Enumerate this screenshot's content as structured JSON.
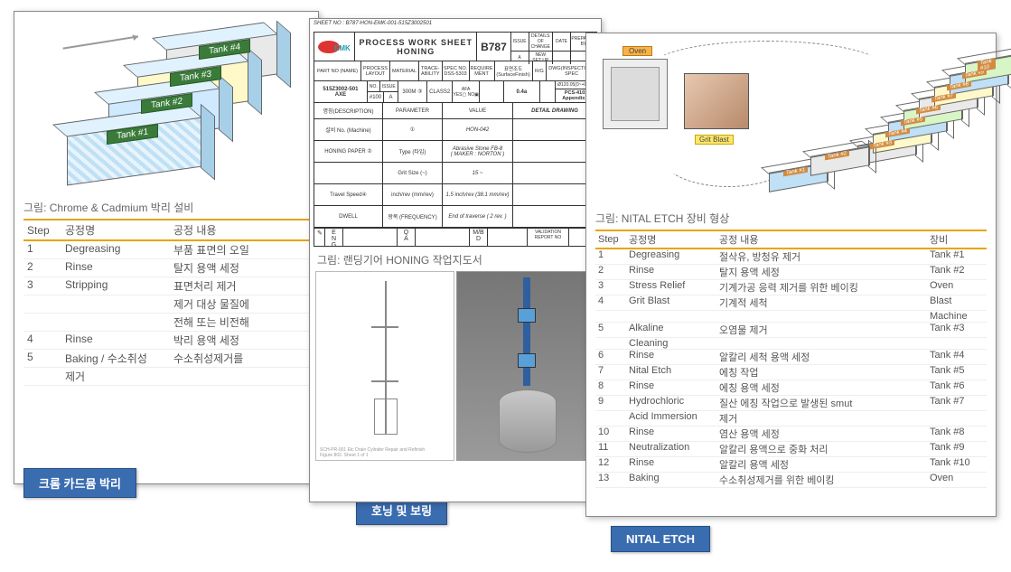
{
  "left": {
    "caption": "그림: Chrome & Cadmium 박리 설비",
    "tag": "크롬 카드뮴 박리",
    "tanks": [
      "Tank #1",
      "Tank #2",
      "Tank #3",
      "Tank #4"
    ],
    "headers": [
      "Step",
      "공정명",
      "공정 내용"
    ],
    "rows": [
      [
        "1",
        "Degreasing",
        "부품 표면의 오일"
      ],
      [
        "2",
        "Rinse",
        "탈지 용액 세정"
      ],
      [
        "3",
        "Stripping",
        "표면처리 제거"
      ],
      [
        "",
        "",
        "제거 대상 물질에"
      ],
      [
        "",
        "",
        "전해 또는 비전해"
      ],
      [
        "4",
        "Rinse",
        "박리 용액 세정"
      ],
      [
        "5",
        "Baking / 수소취성",
        "수소취성제거를"
      ],
      [
        "",
        "제거",
        ""
      ]
    ]
  },
  "mid": {
    "tag": "호닝 및 보링",
    "caption": "그림: 랜딩기어  HONING  작업지도서",
    "sheet_no_label": "SHEET NO : B787-HON-EMK-001-515Z3002501",
    "logo_text": "EMK",
    "title1": "PROCESS WORK SHEET",
    "title2": "HONING",
    "b787": "B787",
    "hdr_small": {
      "issue": "ISSUE",
      "details": "DETAILS OF CHANGE",
      "date": "DATE",
      "prep": "PREPARED BY",
      "a": "A",
      "new": "NEW SET UP"
    },
    "row2": {
      "partno_l": "PART NO (NAME)",
      "process_layout": "PROCESS\nLAYOUT",
      "material": "MATERIAL",
      "trace": "TRACE-\nABILITY",
      "spec": "SPEC NO.\nDSS-5303",
      "require": "REQUIRE\nMENT",
      "surface": "표면조도\n(SurfaceFinish)",
      "rg": "R/G",
      "dwg": "DWG(INSPECTION)\nSPEC"
    },
    "row3": {
      "part": "515Z3002-501\nAXE",
      "no": "NO.",
      "issue": "ISSUE",
      "num100": "#100",
      "A": "A",
      "m300": "300M ③",
      "class2": "CLASS2",
      "afa": "AFA\nYES▢ NO▣",
      "v04a": "0.4a",
      "v120": "Ø120.05(0~+0.05)",
      "pcs": "PCS-4101\nAppendix B"
    },
    "col_hdr": {
      "desc": "명칭(DESCRIPTION)",
      "param": "PARAMETER",
      "value": "VALUE",
      "detail": "DETAIL DRAWING"
    },
    "body": [
      {
        "d": "설비 No. (Machine)",
        "p": "①",
        "v": "HON-042"
      },
      {
        "d": "HONING PAPER ②",
        "p": "Type (타입)",
        "v": "Abrasive Stone FB-8\n( MAKER : NORTON )"
      },
      {
        "d": "",
        "p": "Grit Size (~)",
        "v": "15 ~"
      },
      {
        "d": "Travel Speed④",
        "p": "inch/rev (mm/rev)",
        "v": "1.5 inch/rev (38.1 mm/rev)"
      },
      {
        "d": "DWELL",
        "p": "왕복 (FREQUENCY)",
        "v": "End of traverse ( 2 rev. )"
      }
    ],
    "eng": [
      "E\nN\nG",
      "Q\nA",
      "M/B\nD",
      "VALIDATION\nREPORT NO"
    ]
  },
  "right": {
    "caption": "그림: NITAL ETCH 장비 형상",
    "tag": "NITAL ETCH",
    "oven": "Oven",
    "gb": "Grit Blast",
    "tank_labels": [
      "Tank #1",
      "Tank #2",
      "Tank #3",
      "Tank #4",
      "Tank #5",
      "Tank #6",
      "Tank #7",
      "Tank #8",
      "Tank #9",
      "Tank #10"
    ],
    "headers": [
      "Step",
      "공정명",
      "공정 내용",
      "장비"
    ],
    "rows": [
      [
        "1",
        "Degreasing",
        "절삭유, 방청유  제거",
        "Tank #1"
      ],
      [
        "2",
        "Rinse",
        "탈지 용액 세정",
        "Tank #2"
      ],
      [
        "3",
        "Stress  Relief",
        "기계가공 응력 제거를 위한 베이킹",
        "Oven"
      ],
      [
        "4",
        "Grit  Blast",
        "기계적 세척",
        "Blast"
      ],
      [
        "",
        "",
        "",
        "Machine"
      ],
      [
        "5",
        "Alkaline",
        "오염물 제거",
        "Tank #3"
      ],
      [
        "",
        "Cleaning",
        "",
        ""
      ],
      [
        "6",
        "Rinse",
        "알칼리 세척 용액 세정",
        "Tank #4"
      ],
      [
        "7",
        "Nital  Etch",
        "에칭 작업",
        "Tank #5"
      ],
      [
        "8",
        "Rinse",
        "에칭 용액 세정",
        "Tank #6"
      ],
      [
        "9",
        "Hydrochloric",
        "질산 에칭 작업으로 발생된 smut",
        "Tank #7"
      ],
      [
        "",
        "Acid Immersion",
        "제거",
        ""
      ],
      [
        "10",
        "Rinse",
        "염산 용액 세정",
        "Tank #8"
      ],
      [
        "11",
        "Neutralization",
        "알칼리 용액으로 중화 처리",
        "Tank #9"
      ],
      [
        "12",
        "Rinse",
        "알칼리 용액 세정",
        "Tank #10"
      ],
      [
        "13",
        "Baking",
        "수소취성제거를 위한 베이킹",
        "Oven"
      ]
    ]
  },
  "colors": {
    "accent_border": "#e6a400",
    "tag_bg": "#3a6cb0",
    "tank_label_bg": "#3a7b3a",
    "tank_fill_a": "#cfeaff",
    "tank_fill_b": "#fff9c9",
    "tank_fill_c": "#e9e9e9"
  }
}
